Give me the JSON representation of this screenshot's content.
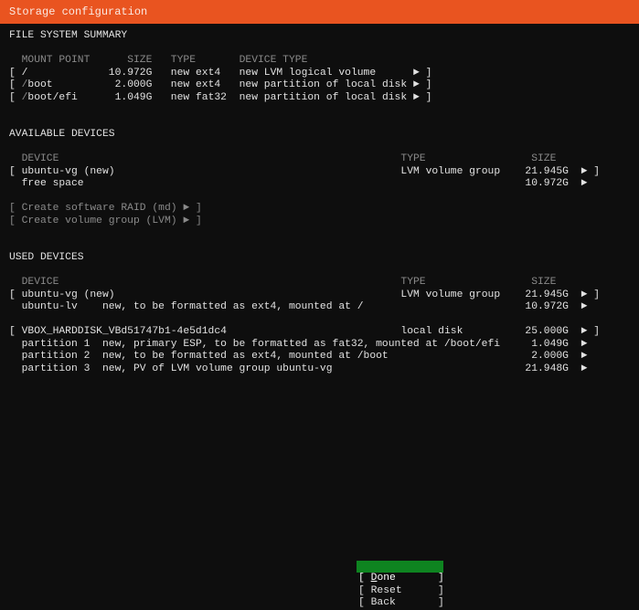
{
  "header": {
    "title": "Storage configuration"
  },
  "fs_summary": {
    "heading": "FILE SYSTEM SUMMARY",
    "columns": [
      "MOUNT POINT",
      "SIZE",
      "TYPE",
      "DEVICE TYPE"
    ],
    "rows": [
      {
        "mount_slash": "/",
        "mount_rest": "",
        "size": "10.972G",
        "type": "new ext4",
        "device_type": "new LVM logical volume"
      },
      {
        "mount_slash": "/",
        "mount_rest": "boot",
        "size": "2.000G",
        "type": "new ext4",
        "device_type": "new partition of local disk"
      },
      {
        "mount_slash": "/",
        "mount_rest": "boot/efi",
        "size": "1.049G",
        "type": "new fat32",
        "device_type": "new partition of local disk"
      }
    ]
  },
  "available": {
    "heading": "AVAILABLE DEVICES",
    "columns": [
      "DEVICE",
      "TYPE",
      "SIZE"
    ],
    "rows": [
      {
        "device": "ubuntu-vg (new)",
        "type": "LVM volume group",
        "size": "21.945G"
      },
      {
        "device": "free space",
        "type": "",
        "size": "10.972G"
      }
    ],
    "actions": [
      "[ Create software RAID (md) ► ]",
      "[ Create volume group (LVM) ► ]"
    ]
  },
  "used": {
    "heading": "USED DEVICES",
    "columns": [
      "DEVICE",
      "TYPE",
      "SIZE"
    ],
    "groups": [
      {
        "device": "ubuntu-vg (new)",
        "type": "LVM volume group",
        "size": "21.945G",
        "children": [
          {
            "name": "ubuntu-lv",
            "desc": "new, to be formatted as ext4, mounted at /",
            "size": "10.972G"
          }
        ]
      },
      {
        "device": "VBOX_HARDDISK_VBd51747b1-4e5d1dc4",
        "type": "local disk",
        "size": "25.000G",
        "children": [
          {
            "name": "partition 1",
            "desc": "new, primary ESP, to be formatted as fat32, mounted at /boot/efi",
            "size": "1.049G"
          },
          {
            "name": "partition 2",
            "desc": "new, to be formatted as ext4, mounted at /boot",
            "size": "2.000G"
          },
          {
            "name": "partition 3",
            "desc": "new, PV of LVM volume group ubuntu-vg",
            "size": "21.948G"
          }
        ]
      }
    ]
  },
  "glyphs": {
    "open": "[",
    "close": "]",
    "arrow": "►"
  },
  "buttons": {
    "done_first": "D",
    "done_rest": "one",
    "reset": "Reset",
    "back": "Back"
  },
  "colors": {
    "header": "#e95420",
    "selected_button": "#0e8420",
    "background": "#0e0e0e"
  }
}
